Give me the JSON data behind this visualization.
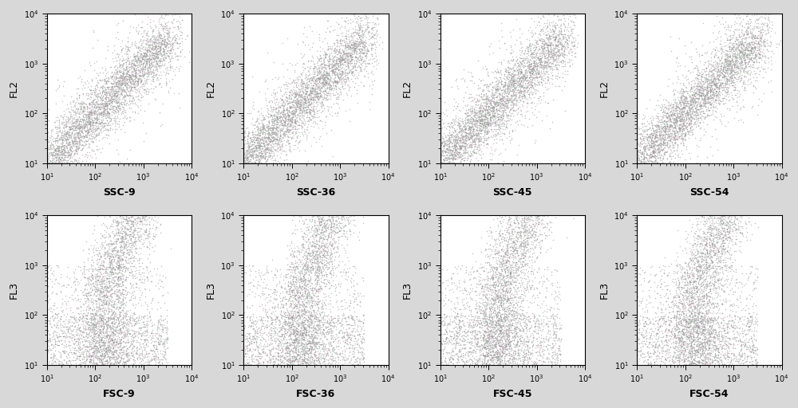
{
  "panels": [
    {
      "row": 0,
      "col": 0,
      "xlabel": "SSC-9",
      "ylabel": "FL2",
      "seed": 1
    },
    {
      "row": 0,
      "col": 1,
      "xlabel": "SSC-36",
      "ylabel": "FL2",
      "seed": 2
    },
    {
      "row": 0,
      "col": 2,
      "xlabel": "SSC-45",
      "ylabel": "FL2",
      "seed": 3
    },
    {
      "row": 0,
      "col": 3,
      "xlabel": "SSC-54",
      "ylabel": "FL2",
      "seed": 4
    },
    {
      "row": 1,
      "col": 0,
      "xlabel": "FSC-9",
      "ylabel": "FL3",
      "seed": 5
    },
    {
      "row": 1,
      "col": 1,
      "xlabel": "FSC-36",
      "ylabel": "FL3",
      "seed": 6
    },
    {
      "row": 1,
      "col": 2,
      "xlabel": "FSC-45",
      "ylabel": "FL3",
      "seed": 7
    },
    {
      "row": 1,
      "col": 3,
      "xlabel": "FSC-54",
      "ylabel": "FL3",
      "seed": 8
    }
  ],
  "n_points": 4000,
  "xlim_log": [
    1.0,
    4.0
  ],
  "ylim_log": [
    1.0,
    4.0
  ],
  "dot_color_main": "#909090",
  "dot_color_pink": "#c090b0",
  "dot_color_green": "#90b090",
  "dot_size": 1.2,
  "dot_alpha": 0.55,
  "plot_bg_color": "#ffffff",
  "fig_bg_color": "#d8d8d8",
  "xlabel_fontsize": 9,
  "ylabel_fontsize": 9,
  "tick_fontsize": 7
}
